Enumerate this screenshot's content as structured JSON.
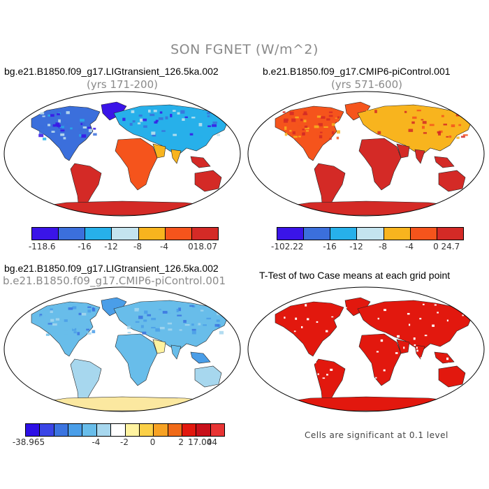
{
  "title": "SON FGNET (W/m^2)",
  "panels": [
    {
      "title": "bg.e21.B1850.f09_g17.LIGtransient_126.5ka.002",
      "subtitle": "(yrs 171-200)",
      "scheme": "cool"
    },
    {
      "title": "b.e21.B1850.f09_g17.CMIP6-piControl.001",
      "subtitle": "(yrs 571-600)",
      "scheme": "warm"
    },
    {
      "title": "bg.e21.B1850.f09_g17.LIGtransient_126.5ka.002",
      "subtitle": "b.e21.B1850.f09_g17.CMIP6-piControl.001",
      "scheme": "diff"
    },
    {
      "title": "T-Test of two Case means at each grid point",
      "subtitle": "",
      "scheme": "ttest"
    }
  ],
  "colorbars": [
    {
      "colors": [
        "#3a14e8",
        "#3b6fdc",
        "#27b0ea",
        "#c4e4ef",
        "#f8b41e",
        "#f5541c",
        "#d42a26"
      ],
      "labels": [
        "-118.6",
        "-16",
        "-12",
        "-8",
        "-4",
        "0",
        "18.07"
      ]
    },
    {
      "colors": [
        "#3a14e8",
        "#3b6fdc",
        "#27b0ea",
        "#c4e4ef",
        "#f8b41e",
        "#f5541c",
        "#d42a26"
      ],
      "labels": [
        "-102.22",
        "-16",
        "-12",
        "-8",
        "-4",
        "0",
        "24.7"
      ]
    },
    {
      "colors": [
        "#2d10e6",
        "#3a45e6",
        "#3b74e0",
        "#4a9ee8",
        "#68bdea",
        "#a7d7ee",
        "#ffffff",
        "#fff3a0",
        "#fbd047",
        "#f7a224",
        "#f06a18",
        "#e2180e",
        "#c8101a",
        "#e83434"
      ],
      "labels": [
        "-38.965",
        "-4",
        "-2",
        "0",
        "2",
        "4",
        "17.004"
      ]
    }
  ],
  "note": "Cells are significant at 0.1 level"
}
